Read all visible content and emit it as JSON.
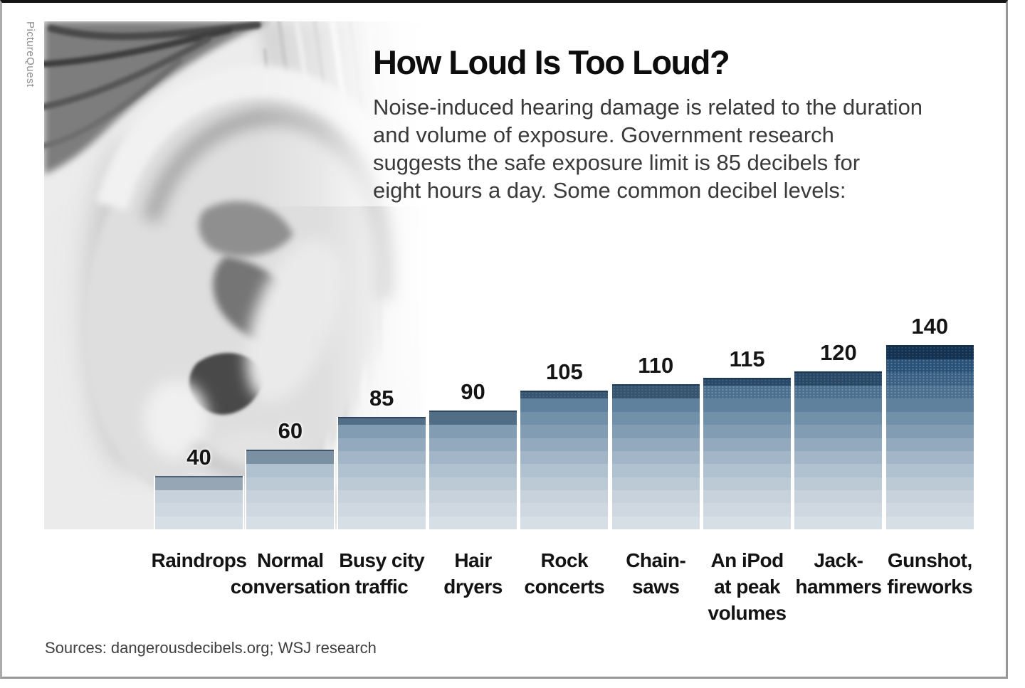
{
  "photo_credit": "PictureQuest",
  "photo": {
    "semantic": "grayscale-closeup-photo-of-human-ear-with-blonde-hair"
  },
  "header": {
    "title": "How Loud Is Too Loud?",
    "description": "Noise-induced hearing damage is related to the duration\nand volume of exposure. Government research\nsuggests the safe exposure limit is 85 decibels for\neight hours a day. Some common decibel levels:"
  },
  "source_line": "Sources: dangerousdecibels.org; WSJ research",
  "chart_data": {
    "type": "bar",
    "title": "How Loud Is Too Loud?",
    "subtitle": "Some common decibel levels",
    "unit": "decibels (dB)",
    "categories": [
      "Raindrops",
      "Normal\nconversation",
      "Busy city\ntraffic",
      "Hair\ndryers",
      "Rock\nconcerts",
      "Chain-\nsaws",
      "An iPod\nat peak\nvolumes",
      "Jack-\nhammers",
      "Gunshot,\nfireworks"
    ],
    "values": [
      40,
      60,
      85,
      90,
      105,
      110,
      115,
      120,
      140
    ],
    "ylim": [
      0,
      140
    ],
    "grid": false,
    "legend": null,
    "band_size_db": 10,
    "color_ramp_bottom_to_top": [
      "#d6dee6",
      "#cfd8e1",
      "#c7d2dc",
      "#bccad6",
      "#b0c1cf",
      "#a2b6c7",
      "#93aabe",
      "#829cb4",
      "#7190a9",
      "#5f819d",
      "#4b7090",
      "#3a6184",
      "#2a5278",
      "#183f66"
    ],
    "value_label_color": "#151515",
    "safe_limit_reference_db": 85
  }
}
